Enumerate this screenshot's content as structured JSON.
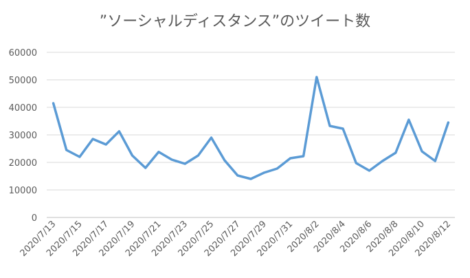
{
  "chart_data": {
    "type": "line",
    "title": "”ソーシャルディスタンス”のツイート数",
    "categories": [
      "2020/7/13",
      null,
      "2020/7/15",
      null,
      "2020/7/17",
      null,
      "2020/7/19",
      null,
      "2020/7/21",
      null,
      "2020/7/23",
      null,
      "2020/7/25",
      null,
      "2020/7/27",
      null,
      "2020/7/29",
      null,
      "2020/7/31",
      null,
      "2020/8/2",
      null,
      "2020/8/4",
      null,
      "2020/8/6",
      null,
      "2020/8/8",
      null,
      "2020/8/10",
      null,
      "2020/8/12"
    ],
    "values": [
      41500,
      24500,
      22000,
      28500,
      26500,
      31300,
      22500,
      18000,
      23800,
      21000,
      19500,
      22500,
      29000,
      20800,
      15250,
      14000,
      16250,
      17750,
      21500,
      22250,
      51000,
      33250,
      32250,
      19750,
      17000,
      20500,
      23500,
      35500,
      24000,
      20500,
      34500
    ],
    "color": "#5b9bd5",
    "ylim": [
      0,
      60000
    ],
    "yticks": [
      0,
      10000,
      20000,
      30000,
      40000,
      50000,
      60000
    ],
    "grid": true
  }
}
